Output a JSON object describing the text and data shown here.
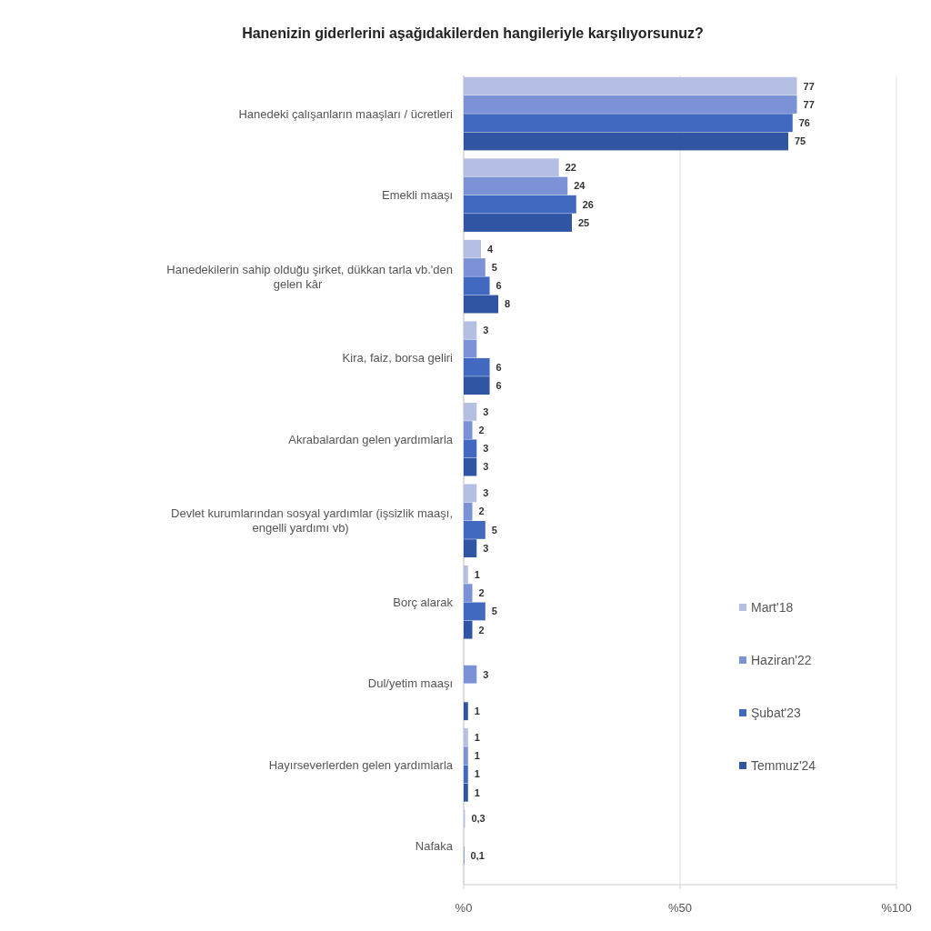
{
  "chart_data": {
    "type": "bar",
    "orientation": "horizontal",
    "title": "Hanenizin giderlerini aşağıdakilerden hangileriyle karşılıyorsunuz?",
    "categories": [
      "Hanedeki çalışanların maaşları / ücretleri",
      "Emekli maaşı",
      "Hanedekilerin sahip olduğu şirket, dükkan tarla vb.'den gelen kâr",
      "Kira, faiz, borsa geliri",
      "Akrabalardan gelen yardımlarla",
      "Devlet kurumlarından sosyal yardımlar (işsizlik maaşı, engelli yardımı vb)",
      "Borç alarak",
      "Dul/yetim maaşı",
      "Hayırseverlerden gelen yardımlarla",
      "Nafaka"
    ],
    "series": [
      {
        "name": "Mart'18",
        "color": "#b4bfe3",
        "values": [
          77,
          22,
          4,
          3,
          3,
          3,
          1,
          null,
          1,
          0.3
        ],
        "value_labels": [
          "77",
          "22",
          "4",
          "3",
          "3",
          "3",
          "1",
          null,
          "1",
          "0,3"
        ]
      },
      {
        "name": "Haziran'22",
        "color": "#7b93d6",
        "values": [
          77,
          24,
          5,
          3,
          2,
          2,
          2,
          3,
          1,
          null
        ],
        "value_labels": [
          "77",
          "24",
          "5",
          null,
          "2",
          "2",
          "2",
          "3",
          "1",
          null
        ]
      },
      {
        "name": "Şubat'23",
        "color": "#4169c0",
        "values": [
          76,
          26,
          6,
          6,
          3,
          5,
          5,
          null,
          1,
          0.1
        ],
        "value_labels": [
          "76",
          "26",
          "6",
          "6",
          "3",
          "5",
          "5",
          null,
          "1",
          "0,1"
        ]
      },
      {
        "name": "Temmuz'24",
        "color": "#2f55a4",
        "values": [
          75,
          25,
          8,
          6,
          3,
          3,
          2,
          1,
          1,
          null
        ],
        "value_labels": [
          "75",
          "25",
          "8",
          "6",
          "3",
          "3",
          "2",
          "1",
          "1",
          null
        ]
      }
    ],
    "xlim": [
      0,
      100
    ],
    "xticks": [
      {
        "value": 0,
        "label": "%0"
      },
      {
        "value": 50,
        "label": "%50"
      },
      {
        "value": 100,
        "label": "%100"
      }
    ],
    "grid": "x",
    "legend": "bottom right"
  }
}
